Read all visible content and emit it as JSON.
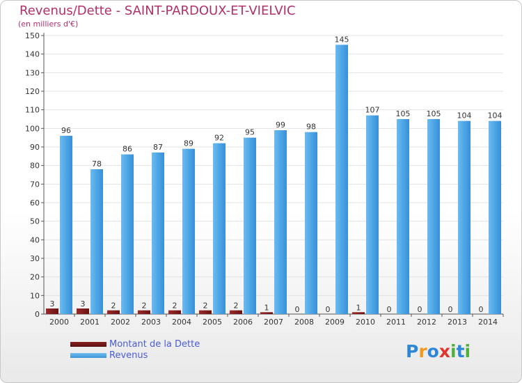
{
  "chart_data": {
    "type": "bar",
    "title": "Revenus/Dette - SAINT-PARDOUX-ET-VIELVIC",
    "subtitle": "(en milliers d'€)",
    "categories": [
      "2000",
      "2001",
      "2002",
      "2003",
      "2004",
      "2005",
      "2006",
      "2007",
      "2008",
      "2009",
      "2010",
      "2011",
      "2012",
      "2013",
      "2014"
    ],
    "series": [
      {
        "name": "Montant de la Dette",
        "color": "#7a1a1a",
        "values": [
          3,
          3,
          2,
          2,
          2,
          2,
          2,
          1,
          0,
          0,
          1,
          0,
          0,
          0,
          0
        ]
      },
      {
        "name": "Revenus",
        "color": "#4ea6e6",
        "values": [
          96,
          78,
          86,
          87,
          89,
          92,
          95,
          99,
          98,
          145,
          107,
          105,
          105,
          104,
          104
        ]
      }
    ],
    "y_ticks": [
      0,
      10,
      20,
      30,
      40,
      50,
      60,
      70,
      80,
      90,
      100,
      110,
      120,
      130,
      140,
      150
    ],
    "ylim": [
      0,
      150
    ],
    "grid": true,
    "legend_position": "bottom-left"
  },
  "brand": {
    "logo_letters": [
      "P",
      "r",
      "o",
      "x",
      "i",
      "t",
      "i"
    ],
    "logo_colors": [
      "#2e86d8",
      "#f09a22",
      "#2e86d8",
      "#e0352b",
      "#4fb03c",
      "#2e86d8",
      "#4fb03c"
    ]
  }
}
